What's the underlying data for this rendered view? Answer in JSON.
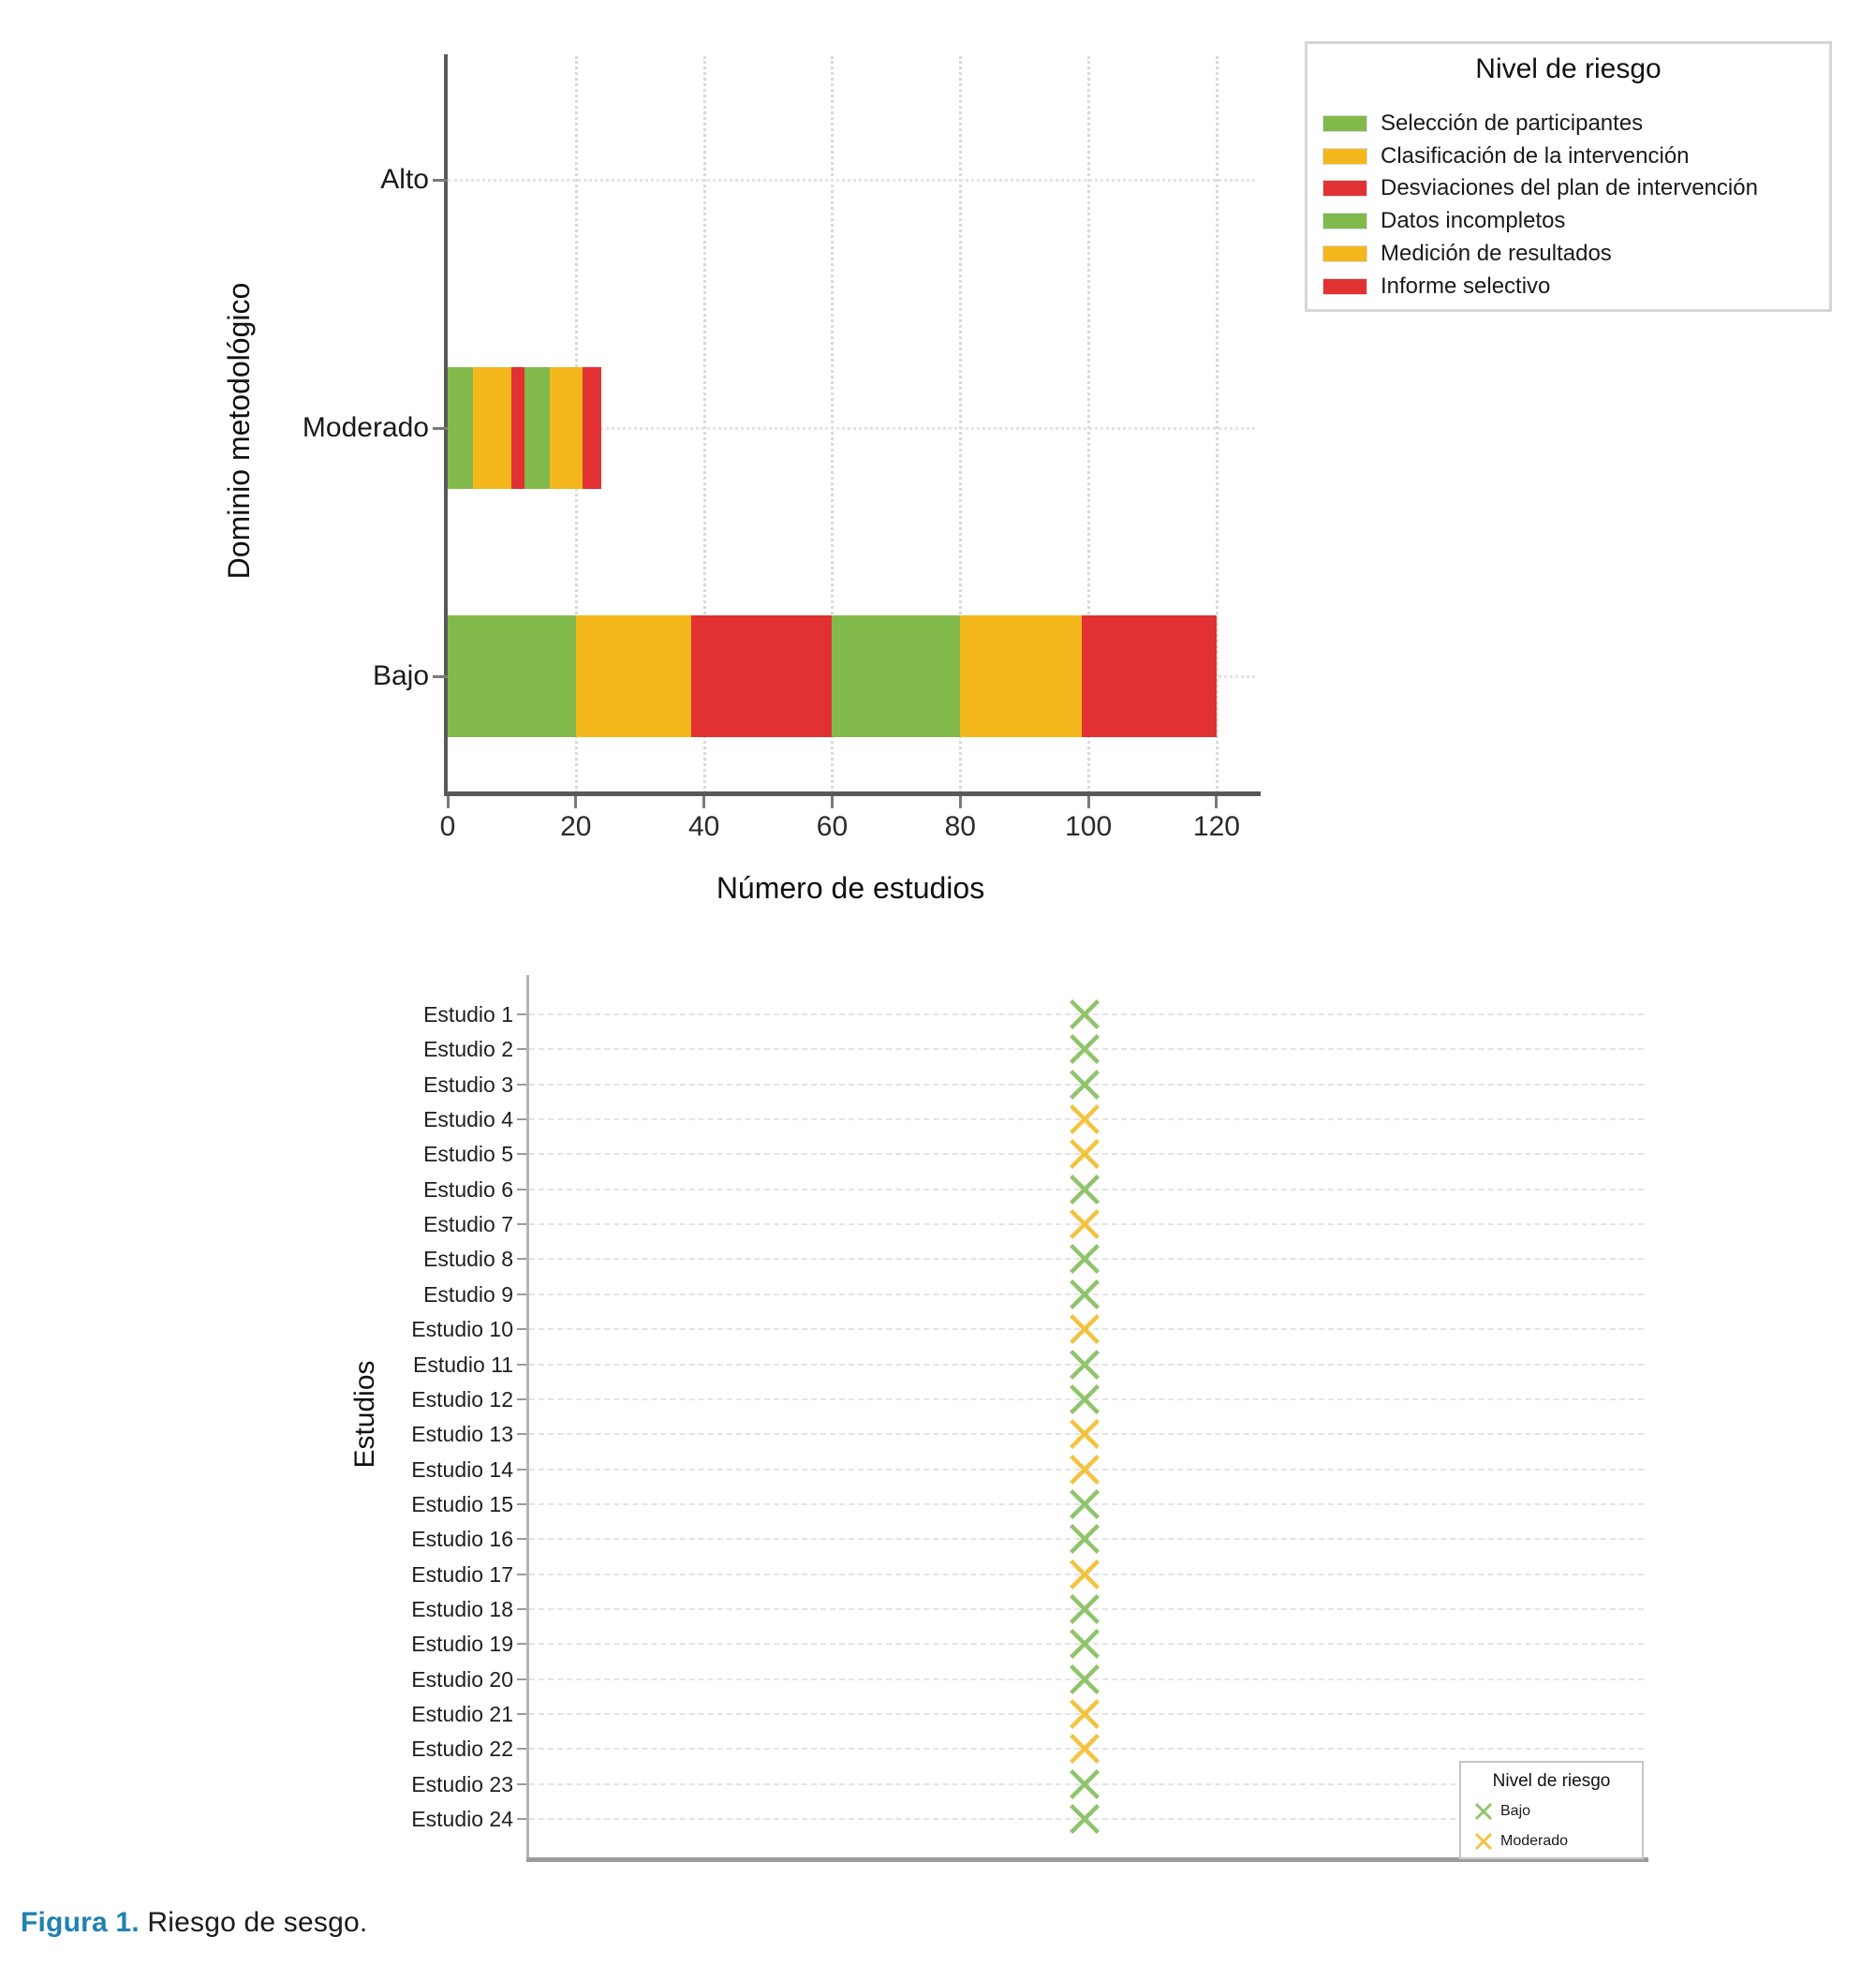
{
  "figure": {
    "caption_label": "Figura 1.",
    "caption_text": "Riesgo de sesgo.",
    "caption_color": "#2081B2"
  },
  "chart_data": [
    {
      "type": "bar",
      "subtype": "horizontal_stacked",
      "xlabel": "Número de estudios",
      "ylabel": "Dominio metodológico",
      "categories": [
        "Alto",
        "Moderado",
        "Bajo"
      ],
      "x_ticks": [
        0,
        20,
        40,
        60,
        80,
        100,
        120
      ],
      "xlim": [
        0,
        126
      ],
      "grid": "dotted",
      "legend": {
        "title": "Nivel de riesgo",
        "position": "top-right"
      },
      "series": [
        {
          "name": "Selección de participantes",
          "color": "#81BA4B",
          "values": [
            0,
            4,
            20
          ]
        },
        {
          "name": "Clasificación de la intervención",
          "color": "#F4B81D",
          "values": [
            0,
            6,
            18
          ]
        },
        {
          "name": "Desviaciones del plan de intervención",
          "color": "#E23132",
          "values": [
            0,
            2,
            22
          ]
        },
        {
          "name": "Datos incompletos",
          "color": "#81BA4B",
          "values": [
            0,
            4,
            20
          ]
        },
        {
          "name": "Medición de resultados",
          "color": "#F4B81D",
          "values": [
            0,
            5,
            19
          ]
        },
        {
          "name": "Informe selectivo",
          "color": "#E23132",
          "values": [
            0,
            3,
            21
          ]
        }
      ],
      "totals": {
        "Alto": 0,
        "Moderado": 24,
        "Bajo": 120
      }
    },
    {
      "type": "scatter",
      "marker": "x",
      "ylabel": "Estudios",
      "x_position": "center",
      "legend": {
        "title": "Nivel de riesgo",
        "position": "bottom-right",
        "entries": [
          {
            "label": "Bajo",
            "color": "#90C46B"
          },
          {
            "label": "Moderado",
            "color": "#F3C340"
          }
        ]
      },
      "points": [
        {
          "label": "Estudio 1",
          "risk": "Bajo"
        },
        {
          "label": "Estudio 2",
          "risk": "Bajo"
        },
        {
          "label": "Estudio 3",
          "risk": "Bajo"
        },
        {
          "label": "Estudio 4",
          "risk": "Moderado"
        },
        {
          "label": "Estudio 5",
          "risk": "Moderado"
        },
        {
          "label": "Estudio 6",
          "risk": "Bajo"
        },
        {
          "label": "Estudio 7",
          "risk": "Moderado"
        },
        {
          "label": "Estudio 8",
          "risk": "Bajo"
        },
        {
          "label": "Estudio 9",
          "risk": "Bajo"
        },
        {
          "label": "Estudio 10",
          "risk": "Moderado"
        },
        {
          "label": "Estudio 11",
          "risk": "Bajo"
        },
        {
          "label": "Estudio 12",
          "risk": "Bajo"
        },
        {
          "label": "Estudio 13",
          "risk": "Moderado"
        },
        {
          "label": "Estudio 14",
          "risk": "Moderado"
        },
        {
          "label": "Estudio 15",
          "risk": "Bajo"
        },
        {
          "label": "Estudio 16",
          "risk": "Bajo"
        },
        {
          "label": "Estudio 17",
          "risk": "Moderado"
        },
        {
          "label": "Estudio 18",
          "risk": "Bajo"
        },
        {
          "label": "Estudio 19",
          "risk": "Bajo"
        },
        {
          "label": "Estudio 20",
          "risk": "Bajo"
        },
        {
          "label": "Estudio 21",
          "risk": "Moderado"
        },
        {
          "label": "Estudio 22",
          "risk": "Moderado"
        },
        {
          "label": "Estudio 23",
          "risk": "Bajo"
        },
        {
          "label": "Estudio 24",
          "risk": "Bajo"
        }
      ]
    }
  ]
}
